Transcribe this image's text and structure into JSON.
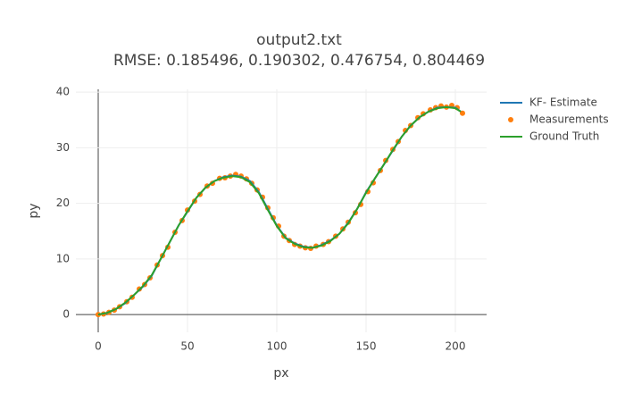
{
  "chart_data": {
    "type": "line",
    "title": "output2.txt",
    "subtitle": "RMSE: 0.185496, 0.190302, 0.476754, 0.804469",
    "x_label": "px",
    "y_label": "py",
    "xlim": [
      -12.5,
      217.5
    ],
    "ylim": [
      -3.2,
      40.5
    ],
    "xticks": [
      0,
      50,
      100,
      150,
      200
    ],
    "yticks": [
      0,
      10,
      20,
      30,
      40
    ],
    "grid": true,
    "legend": "top-right",
    "series": [
      {
        "name": "KF- Estimate",
        "color": "#1f77b4",
        "mode": "lines",
        "x": [
          0,
          5,
          10,
          15,
          20,
          25,
          30,
          35,
          40,
          45,
          50,
          55,
          60,
          65,
          70,
          75,
          80,
          85,
          90,
          95,
          100,
          105,
          110,
          115,
          120,
          125,
          130,
          135,
          140,
          145,
          150,
          155,
          160,
          165,
          170,
          175,
          180,
          185,
          190,
          195,
          200,
          203
        ],
        "values": [
          0,
          0.3,
          1,
          2,
          3.5,
          5,
          7,
          10,
          13,
          16,
          18.5,
          21,
          22.8,
          24,
          24.7,
          25,
          24.8,
          24,
          22,
          19,
          16,
          13.8,
          12.8,
          12.2,
          12,
          12.5,
          13.3,
          14.5,
          16.5,
          19,
          22,
          24.5,
          27,
          29.5,
          32,
          34,
          35.5,
          36.5,
          37.2,
          37.3,
          37.2,
          36.5
        ]
      },
      {
        "name": "Measurements",
        "color": "#ff7f0e",
        "mode": "markers",
        "x": [
          0,
          3,
          6,
          9,
          12,
          16,
          19,
          23,
          26,
          29,
          33,
          36,
          39,
          43,
          47,
          50,
          54,
          57,
          61,
          64,
          68,
          71,
          74,
          77,
          80,
          83,
          86,
          89,
          92,
          95,
          98,
          101,
          104,
          107,
          110,
          113,
          116,
          119,
          122,
          126,
          129,
          133,
          137,
          140,
          144,
          147,
          151,
          154,
          158,
          161,
          165,
          168,
          172,
          175,
          179,
          182,
          186,
          189,
          192,
          195,
          198,
          201,
          204
        ],
        "values": [
          0,
          0.1,
          0.4,
          0.8,
          1.4,
          2.3,
          3.1,
          4.6,
          5.4,
          6.6,
          8.9,
          10.6,
          12.1,
          14.8,
          16.9,
          18.8,
          20.4,
          21.6,
          23.1,
          23.6,
          24.5,
          24.6,
          24.9,
          25.2,
          24.9,
          24.4,
          23.6,
          22.4,
          21.1,
          19.2,
          17.4,
          15.9,
          14.1,
          13.3,
          12.6,
          12.3,
          12.0,
          11.9,
          12.3,
          12.6,
          13.1,
          14.1,
          15.4,
          16.6,
          18.3,
          19.8,
          22.1,
          23.7,
          25.9,
          27.7,
          29.7,
          31.1,
          33.1,
          34.0,
          35.4,
          36.1,
          36.8,
          37.2,
          37.5,
          37.3,
          37.6,
          37.2,
          36.2
        ]
      },
      {
        "name": "Ground Truth",
        "color": "#2ca02c",
        "mode": "lines",
        "x": [
          0,
          5,
          10,
          15,
          20,
          25,
          30,
          35,
          40,
          45,
          50,
          55,
          60,
          65,
          70,
          75,
          80,
          85,
          90,
          95,
          100,
          105,
          110,
          115,
          120,
          125,
          130,
          135,
          140,
          145,
          150,
          155,
          160,
          165,
          170,
          175,
          180,
          185,
          190,
          195,
          200,
          203
        ],
        "values": [
          0,
          0.3,
          1,
          2.1,
          3.5,
          5.1,
          7.1,
          10,
          13,
          16,
          18.6,
          21,
          22.8,
          24,
          24.6,
          24.9,
          24.7,
          23.8,
          21.8,
          18.8,
          15.9,
          13.7,
          12.7,
          12.1,
          12,
          12.4,
          13.2,
          14.5,
          16.4,
          19,
          21.9,
          24.5,
          27,
          29.6,
          32,
          34,
          35.5,
          36.5,
          37.1,
          37.3,
          37.1,
          36.5
        ]
      }
    ]
  }
}
